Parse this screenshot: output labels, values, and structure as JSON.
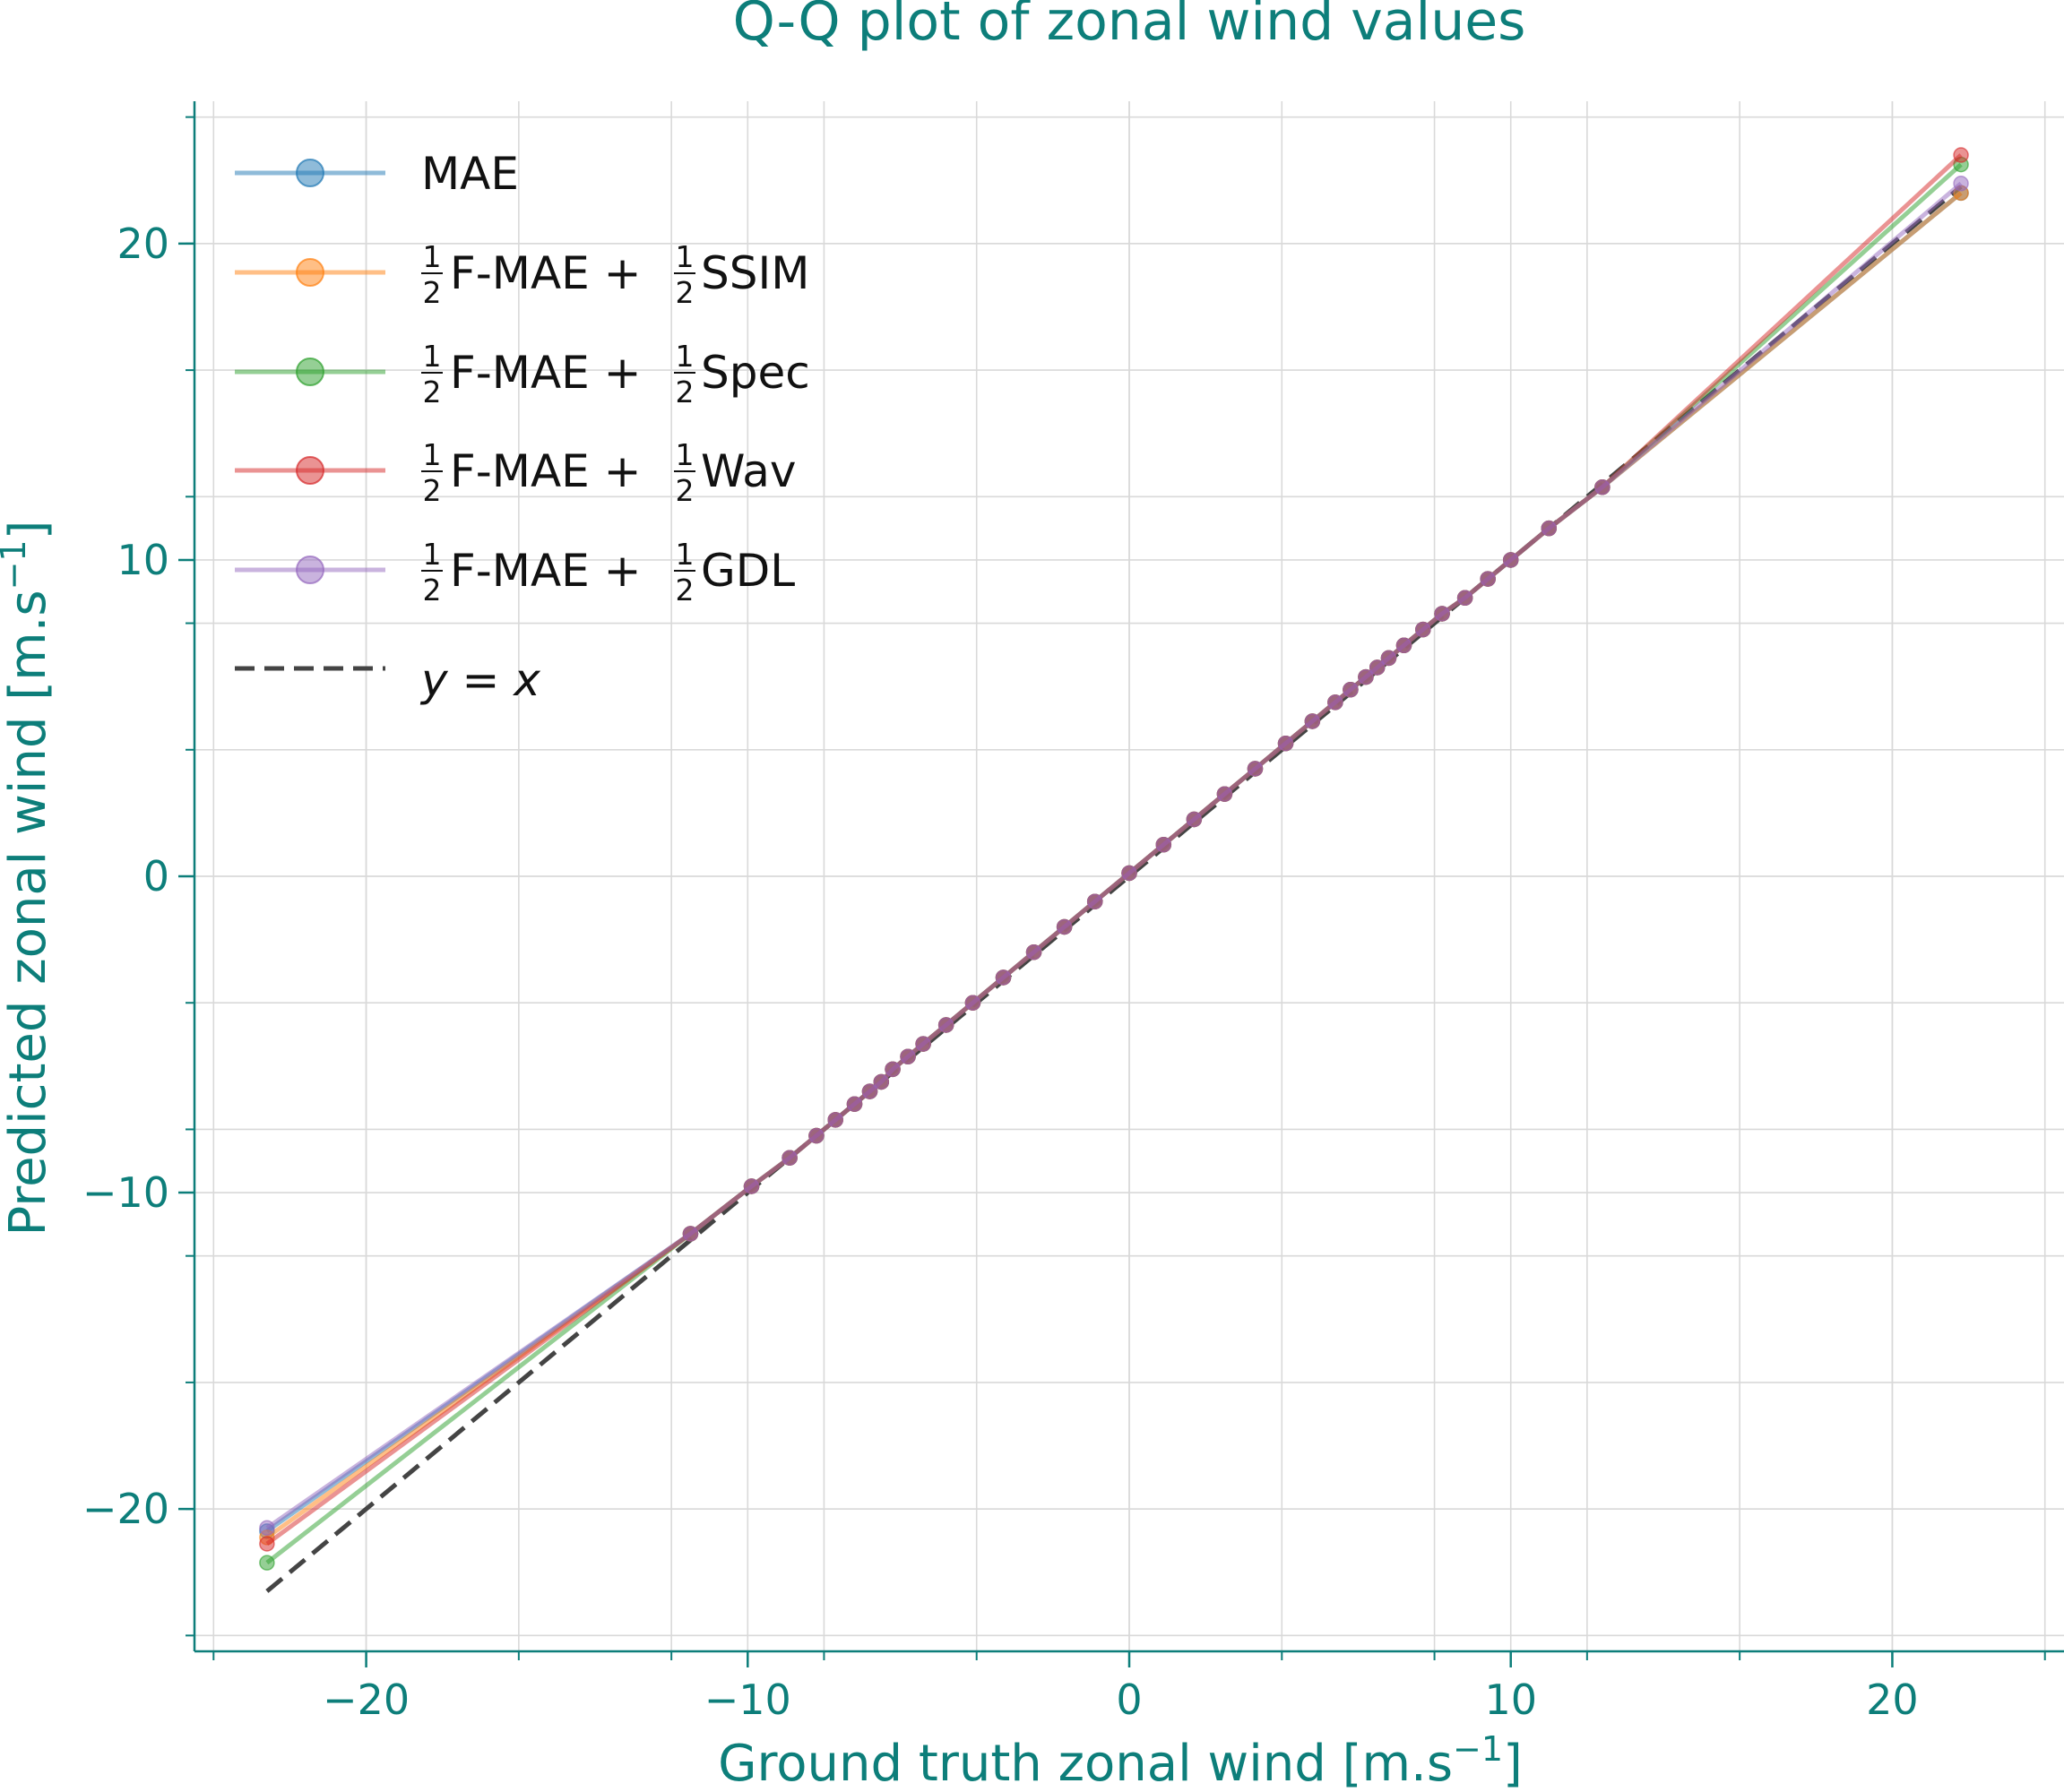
{
  "colors": {
    "accent": "#0d7e7a",
    "grid": "#d9d9d9",
    "MAE": "#1f77b4",
    "SSIM": "#ff7f0e",
    "Spec": "#2ca02c",
    "Wav": "#d62728",
    "GDL": "#9467bd",
    "identity": "#444444"
  },
  "legend_items": [
    {
      "series": "MAE",
      "main": "MAE",
      "has_frac": false
    },
    {
      "series": "SSIM",
      "main": "F-MAE + ",
      "suffix": "SSIM",
      "has_frac": true
    },
    {
      "series": "Spec",
      "main": "F-MAE + ",
      "suffix": "Spec",
      "has_frac": true
    },
    {
      "series": "Wav",
      "main": "F-MAE + ",
      "suffix": "Wav",
      "has_frac": true
    },
    {
      "series": "GDL",
      "main": "F-MAE + ",
      "suffix": "GDL",
      "has_frac": true
    }
  ],
  "legend_identity_label": "y = x",
  "fraction": {
    "num": "1",
    "den": "2"
  },
  "chart_data": {
    "type": "line",
    "title": "Q-Q plot of zonal wind values",
    "xlabel": "Ground truth zonal wind [m.s",
    "ylabel": "Predicted zonal wind [m.s",
    "unit_exponent": "−1",
    "unit_close": "]",
    "xlim": [
      -24.5,
      24.5
    ],
    "ylim": [
      -24.5,
      24.5
    ],
    "x_ticks": [
      -20,
      -10,
      0,
      10,
      20
    ],
    "y_ticks": [
      -20,
      -10,
      0,
      10,
      20
    ],
    "x_tick_labels": [
      "−20",
      "−10",
      "0",
      "10",
      "20"
    ],
    "y_tick_labels": [
      "−20",
      "−10",
      "0",
      "10",
      "20"
    ],
    "grid": true,
    "legend_position": "top-left",
    "quantiles": [
      -22.6,
      -11.5,
      -9.9,
      -8.9,
      -8.2,
      -7.7,
      -7.2,
      -6.8,
      -6.5,
      -6.2,
      -5.8,
      -5.4,
      -4.8,
      -4.1,
      -3.3,
      -2.5,
      -1.7,
      -0.9,
      0.0,
      0.9,
      1.7,
      2.5,
      3.3,
      4.1,
      4.8,
      5.4,
      5.8,
      6.2,
      6.5,
      6.8,
      7.2,
      7.7,
      8.2,
      8.8,
      9.4,
      10.0,
      11.0,
      12.4,
      21.8
    ],
    "series": [
      {
        "name": "MAE",
        "values": [
          -20.7,
          -11.3,
          -9.8,
          -8.9,
          -8.2,
          -7.7,
          -7.2,
          -6.8,
          -6.5,
          -6.1,
          -5.7,
          -5.3,
          -4.7,
          -4.0,
          -3.2,
          -2.4,
          -1.6,
          -0.8,
          0.1,
          1.0,
          1.8,
          2.6,
          3.4,
          4.2,
          4.9,
          5.5,
          5.9,
          6.3,
          6.6,
          6.9,
          7.3,
          7.8,
          8.3,
          8.8,
          9.4,
          10.0,
          11.0,
          12.3,
          21.6
        ]
      },
      {
        "name": "½F-MAE + ½SSIM",
        "values": [
          -20.9,
          -11.3,
          -9.8,
          -8.9,
          -8.2,
          -7.7,
          -7.2,
          -6.8,
          -6.5,
          -6.1,
          -5.7,
          -5.3,
          -4.7,
          -4.0,
          -3.2,
          -2.4,
          -1.6,
          -0.8,
          0.1,
          1.0,
          1.8,
          2.6,
          3.4,
          4.2,
          4.9,
          5.5,
          5.9,
          6.3,
          6.6,
          6.9,
          7.3,
          7.8,
          8.3,
          8.8,
          9.4,
          10.0,
          11.0,
          12.3,
          21.6
        ]
      },
      {
        "name": "½F-MAE + ½Spec",
        "values": [
          -21.7,
          -11.3,
          -9.8,
          -8.9,
          -8.2,
          -7.7,
          -7.2,
          -6.8,
          -6.5,
          -6.1,
          -5.7,
          -5.3,
          -4.7,
          -4.0,
          -3.2,
          -2.4,
          -1.6,
          -0.8,
          0.1,
          1.0,
          1.8,
          2.6,
          3.4,
          4.2,
          4.9,
          5.5,
          5.9,
          6.3,
          6.6,
          6.9,
          7.3,
          7.8,
          8.3,
          8.8,
          9.4,
          10.0,
          11.0,
          12.3,
          22.5
        ]
      },
      {
        "name": "½F-MAE + ½Wav",
        "values": [
          -21.1,
          -11.3,
          -9.8,
          -8.9,
          -8.2,
          -7.7,
          -7.2,
          -6.8,
          -6.5,
          -6.1,
          -5.7,
          -5.3,
          -4.7,
          -4.0,
          -3.2,
          -2.4,
          -1.6,
          -0.8,
          0.1,
          1.0,
          1.8,
          2.6,
          3.4,
          4.2,
          4.9,
          5.5,
          5.9,
          6.3,
          6.6,
          6.9,
          7.3,
          7.8,
          8.3,
          8.8,
          9.4,
          10.0,
          11.0,
          12.3,
          22.8
        ]
      },
      {
        "name": "½F-MAE + ½GDL",
        "values": [
          -20.6,
          -11.3,
          -9.8,
          -8.9,
          -8.2,
          -7.7,
          -7.2,
          -6.8,
          -6.5,
          -6.1,
          -5.7,
          -5.3,
          -4.7,
          -4.0,
          -3.2,
          -2.4,
          -1.6,
          -0.8,
          0.1,
          1.0,
          1.8,
          2.6,
          3.4,
          4.2,
          4.9,
          5.5,
          5.9,
          6.3,
          6.6,
          6.9,
          7.3,
          7.8,
          8.3,
          8.8,
          9.4,
          10.0,
          11.0,
          12.3,
          21.9
        ]
      }
    ],
    "identity_line": {
      "name": "y = x",
      "x": [
        -22.6,
        21.8
      ],
      "y": [
        -22.6,
        21.8
      ]
    }
  }
}
